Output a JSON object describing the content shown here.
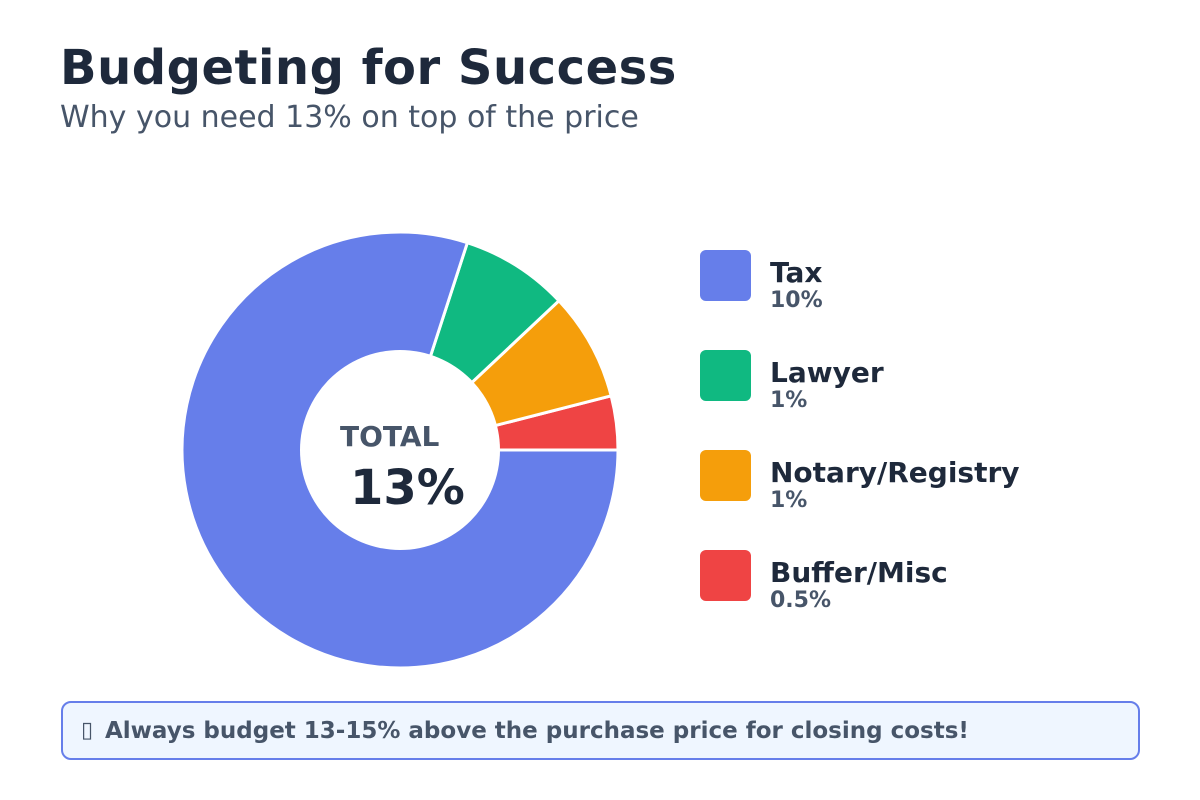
{
  "header": {
    "title": "Budgeting for Success",
    "subtitle": "Why you need 13% on top of the price"
  },
  "donut": {
    "center_label": "TOTAL",
    "center_value": "13%"
  },
  "legend": [
    {
      "name": "Tax",
      "value": "10%",
      "color": "#667eea"
    },
    {
      "name": "Lawyer",
      "value": "1%",
      "color": "#10b981"
    },
    {
      "name": "Notary/Registry",
      "value": "1%",
      "color": "#f59e0b"
    },
    {
      "name": "Buffer/Misc",
      "value": "0.5%",
      "color": "#ef4444"
    }
  ],
  "callout": {
    "icon": "lightbulb-icon",
    "icon_glyph": "▯",
    "text": "Always budget 13-15% above the purchase price for closing costs!"
  },
  "chart_data": {
    "type": "pie",
    "variant": "donut",
    "title": "Budgeting for Success",
    "subtitle": "Why you need 13% on top of the price",
    "categories": [
      "Tax",
      "Lawyer",
      "Notary/Registry",
      "Buffer/Misc"
    ],
    "values": [
      10,
      1,
      1,
      0.5
    ],
    "unit": "%",
    "colors": [
      "#667eea",
      "#10b981",
      "#f59e0b",
      "#ef4444"
    ],
    "center_text": {
      "label": "TOTAL",
      "value": "13%"
    },
    "legend_position": "right",
    "annotation": "Always budget 13-15% above the purchase price for closing costs!"
  }
}
